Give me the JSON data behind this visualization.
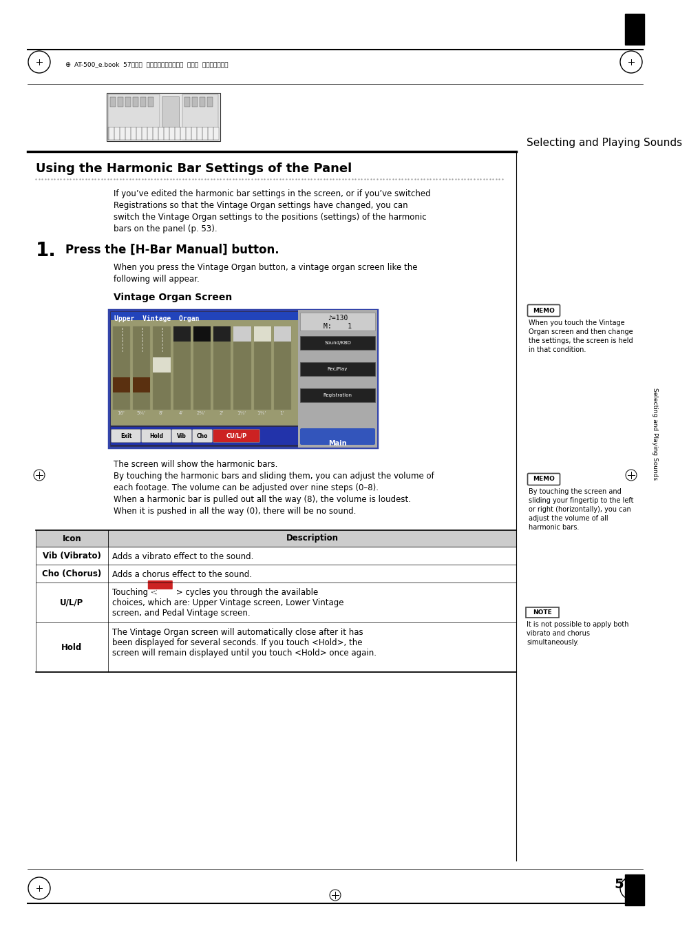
{
  "page_bg": "#ffffff",
  "title": "Using the Harmonic Bar Settings of the Panel",
  "section_num": "1.",
  "section_title": "Press the [H-Bar Manual] button.",
  "subsection": "Vintage Organ Screen",
  "header_text": "Selecting and Playing Sounds",
  "file_info": "AT-500_e.book  57ページ  ２００８年７月２８日  月曜日  午後４時１７分",
  "intro_text": "If you’ve edited the harmonic bar settings in the screen, or if you’ve switched\nRegistrations so that the Vintage Organ settings have changed, you can\nswitch the Vintage Organ settings to the positions (settings) of the harmonic\nbars on the panel (p. 53).",
  "step_desc": "When you press the Vintage Organ button, a vintage organ screen like the\nfollowing will appear.",
  "body_text1": "The screen will show the harmonic bars.",
  "body_text2": "By touching the harmonic bars and sliding them, you can adjust the volume of\neach footage. The volume can be adjusted over nine steps (0–8).\nWhen a harmonic bar is pulled out all the way (8), the volume is loudest.\nWhen it is pushed in all the way (0), there will be no sound.",
  "memo1_text": "When you touch the Vintage\nOrgan screen and then change\nthe settings, the screen is held\nin that condition.",
  "memo2_text": "By touching the screen and\nsliding your fingertip to the left\nor right (horizontally), you can\nadjust the volume of all\nharmonic bars.",
  "note_text": "It is not possible to apply both\nvibrato and chorus\nsimultaneously.",
  "table_header": [
    "Icon",
    "Description"
  ],
  "table_rows": [
    [
      "Vib (Vibrato)",
      "Adds a vibrato effect to the sound."
    ],
    [
      "Cho (Chorus)",
      "Adds a chorus effect to the sound."
    ],
    [
      "U/L/P",
      "Touching <            > cycles you through the available\nchoices, which are: Upper Vintage screen, Lower Vintage\nscreen, and Pedal Vintage screen."
    ],
    [
      "Hold",
      "The Vintage Organ screen will automatically close after it has\nbeen displayed for several seconds. If you touch <Hold>, the\nscreen will remain displayed until you touch <Hold> once again."
    ]
  ],
  "page_num": "57",
  "sidebar_text": "Selecting and Playing Sounds"
}
